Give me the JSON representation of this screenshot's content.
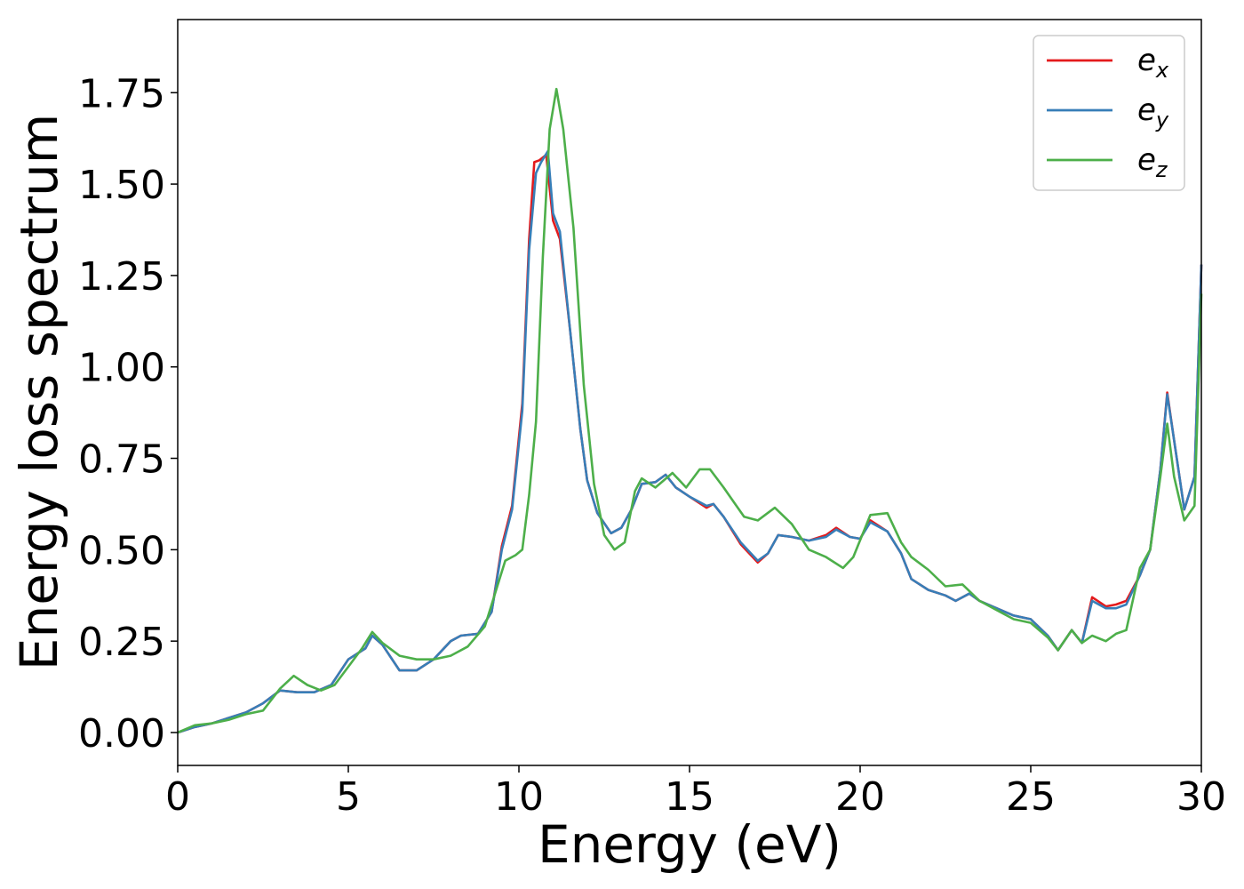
{
  "chart_data": {
    "type": "line",
    "xlabel": "Energy (eV)",
    "ylabel": "Energy loss spectrum",
    "xlim": [
      0,
      30
    ],
    "ylim": [
      -0.09,
      1.95
    ],
    "xticks": [
      "0",
      "5",
      "10",
      "15",
      "20",
      "25",
      "30"
    ],
    "yticks": [
      "0.00",
      "0.25",
      "0.50",
      "0.75",
      "1.00",
      "1.25",
      "1.50",
      "1.75"
    ],
    "grid": false,
    "legend_position": "top-right",
    "series": [
      {
        "name_base": "e",
        "name_sub": "x",
        "color": "#e41a1c",
        "points": [
          [
            0,
            0
          ],
          [
            0.5,
            0.015
          ],
          [
            1,
            0.025
          ],
          [
            1.5,
            0.04
          ],
          [
            2,
            0.055
          ],
          [
            2.5,
            0.08
          ],
          [
            3,
            0.115
          ],
          [
            3.5,
            0.11
          ],
          [
            4,
            0.11
          ],
          [
            4.5,
            0.13
          ],
          [
            5,
            0.2
          ],
          [
            5.5,
            0.23
          ],
          [
            5.7,
            0.265
          ],
          [
            6,
            0.24
          ],
          [
            6.5,
            0.17
          ],
          [
            7,
            0.17
          ],
          [
            7.5,
            0.2
          ],
          [
            8,
            0.25
          ],
          [
            8.3,
            0.265
          ],
          [
            8.8,
            0.27
          ],
          [
            9.2,
            0.33
          ],
          [
            9.5,
            0.51
          ],
          [
            9.8,
            0.62
          ],
          [
            10.1,
            0.9
          ],
          [
            10.3,
            1.35
          ],
          [
            10.45,
            1.56
          ],
          [
            10.6,
            1.565
          ],
          [
            10.8,
            1.58
          ],
          [
            11,
            1.4
          ],
          [
            11.2,
            1.35
          ],
          [
            11.5,
            1.1
          ],
          [
            11.8,
            0.83
          ],
          [
            12,
            0.69
          ],
          [
            12.3,
            0.6
          ],
          [
            12.7,
            0.545
          ],
          [
            13,
            0.56
          ],
          [
            13.3,
            0.61
          ],
          [
            13.6,
            0.68
          ],
          [
            14,
            0.685
          ],
          [
            14.3,
            0.705
          ],
          [
            14.6,
            0.67
          ],
          [
            15,
            0.645
          ],
          [
            15.5,
            0.615
          ],
          [
            15.7,
            0.625
          ],
          [
            16,
            0.59
          ],
          [
            16.5,
            0.515
          ],
          [
            17,
            0.465
          ],
          [
            17.3,
            0.49
          ],
          [
            17.6,
            0.54
          ],
          [
            18,
            0.535
          ],
          [
            18.5,
            0.525
          ],
          [
            19,
            0.54
          ],
          [
            19.3,
            0.56
          ],
          [
            19.7,
            0.535
          ],
          [
            20,
            0.53
          ],
          [
            20.3,
            0.58
          ],
          [
            20.8,
            0.55
          ],
          [
            21.2,
            0.49
          ],
          [
            21.5,
            0.42
          ],
          [
            22,
            0.39
          ],
          [
            22.5,
            0.375
          ],
          [
            22.8,
            0.36
          ],
          [
            23.2,
            0.38
          ],
          [
            23.5,
            0.36
          ],
          [
            24,
            0.34
          ],
          [
            24.5,
            0.32
          ],
          [
            25,
            0.31
          ],
          [
            25.5,
            0.265
          ],
          [
            25.8,
            0.225
          ],
          [
            26.2,
            0.28
          ],
          [
            26.5,
            0.245
          ],
          [
            26.8,
            0.37
          ],
          [
            27.2,
            0.345
          ],
          [
            27.5,
            0.35
          ],
          [
            27.8,
            0.36
          ],
          [
            28.2,
            0.43
          ],
          [
            28.5,
            0.5
          ],
          [
            28.8,
            0.72
          ],
          [
            29,
            0.93
          ],
          [
            29.2,
            0.8
          ],
          [
            29.5,
            0.61
          ],
          [
            29.8,
            0.7
          ],
          [
            30,
            1.28
          ]
        ]
      },
      {
        "name_base": "e",
        "name_sub": "y",
        "color": "#377eb8",
        "points": [
          [
            0,
            0
          ],
          [
            0.5,
            0.015
          ],
          [
            1,
            0.025
          ],
          [
            1.5,
            0.04
          ],
          [
            2,
            0.055
          ],
          [
            2.5,
            0.08
          ],
          [
            3,
            0.115
          ],
          [
            3.5,
            0.11
          ],
          [
            4,
            0.11
          ],
          [
            4.5,
            0.13
          ],
          [
            5,
            0.2
          ],
          [
            5.5,
            0.23
          ],
          [
            5.7,
            0.265
          ],
          [
            6,
            0.24
          ],
          [
            6.5,
            0.17
          ],
          [
            7,
            0.17
          ],
          [
            7.5,
            0.2
          ],
          [
            8,
            0.25
          ],
          [
            8.3,
            0.265
          ],
          [
            8.8,
            0.27
          ],
          [
            9.2,
            0.33
          ],
          [
            9.5,
            0.5
          ],
          [
            9.8,
            0.61
          ],
          [
            10.1,
            0.88
          ],
          [
            10.3,
            1.32
          ],
          [
            10.5,
            1.53
          ],
          [
            10.65,
            1.56
          ],
          [
            10.85,
            1.59
          ],
          [
            11,
            1.42
          ],
          [
            11.2,
            1.37
          ],
          [
            11.5,
            1.1
          ],
          [
            11.8,
            0.83
          ],
          [
            12,
            0.69
          ],
          [
            12.3,
            0.6
          ],
          [
            12.7,
            0.545
          ],
          [
            13,
            0.56
          ],
          [
            13.3,
            0.61
          ],
          [
            13.6,
            0.68
          ],
          [
            14,
            0.685
          ],
          [
            14.3,
            0.705
          ],
          [
            14.6,
            0.67
          ],
          [
            15,
            0.645
          ],
          [
            15.5,
            0.62
          ],
          [
            15.7,
            0.625
          ],
          [
            16,
            0.59
          ],
          [
            16.5,
            0.52
          ],
          [
            17,
            0.47
          ],
          [
            17.3,
            0.49
          ],
          [
            17.6,
            0.54
          ],
          [
            18,
            0.535
          ],
          [
            18.5,
            0.525
          ],
          [
            19,
            0.535
          ],
          [
            19.3,
            0.555
          ],
          [
            19.7,
            0.535
          ],
          [
            20,
            0.53
          ],
          [
            20.3,
            0.575
          ],
          [
            20.8,
            0.55
          ],
          [
            21.2,
            0.49
          ],
          [
            21.5,
            0.42
          ],
          [
            22,
            0.39
          ],
          [
            22.5,
            0.375
          ],
          [
            22.8,
            0.36
          ],
          [
            23.2,
            0.38
          ],
          [
            23.5,
            0.36
          ],
          [
            24,
            0.34
          ],
          [
            24.5,
            0.32
          ],
          [
            25,
            0.31
          ],
          [
            25.5,
            0.265
          ],
          [
            25.8,
            0.225
          ],
          [
            26.2,
            0.28
          ],
          [
            26.5,
            0.245
          ],
          [
            26.8,
            0.36
          ],
          [
            27.2,
            0.34
          ],
          [
            27.5,
            0.34
          ],
          [
            27.8,
            0.35
          ],
          [
            28.2,
            0.43
          ],
          [
            28.5,
            0.5
          ],
          [
            28.8,
            0.72
          ],
          [
            29,
            0.925
          ],
          [
            29.2,
            0.8
          ],
          [
            29.5,
            0.61
          ],
          [
            29.8,
            0.7
          ],
          [
            30,
            1.28
          ]
        ]
      },
      {
        "name_base": "e",
        "name_sub": "z",
        "color": "#4daf4a",
        "points": [
          [
            0,
            0
          ],
          [
            0.5,
            0.02
          ],
          [
            1,
            0.025
          ],
          [
            1.5,
            0.035
          ],
          [
            2,
            0.05
          ],
          [
            2.5,
            0.06
          ],
          [
            3,
            0.12
          ],
          [
            3.4,
            0.155
          ],
          [
            3.8,
            0.13
          ],
          [
            4.2,
            0.115
          ],
          [
            4.6,
            0.13
          ],
          [
            5,
            0.18
          ],
          [
            5.4,
            0.23
          ],
          [
            5.7,
            0.275
          ],
          [
            6,
            0.245
          ],
          [
            6.5,
            0.21
          ],
          [
            7,
            0.2
          ],
          [
            7.5,
            0.2
          ],
          [
            8,
            0.21
          ],
          [
            8.5,
            0.235
          ],
          [
            9,
            0.29
          ],
          [
            9.3,
            0.38
          ],
          [
            9.6,
            0.47
          ],
          [
            9.9,
            0.485
          ],
          [
            10.1,
            0.5
          ],
          [
            10.3,
            0.65
          ],
          [
            10.5,
            0.85
          ],
          [
            10.7,
            1.3
          ],
          [
            10.9,
            1.65
          ],
          [
            11.1,
            1.76
          ],
          [
            11.3,
            1.65
          ],
          [
            11.6,
            1.38
          ],
          [
            11.9,
            0.95
          ],
          [
            12.2,
            0.68
          ],
          [
            12.5,
            0.54
          ],
          [
            12.8,
            0.5
          ],
          [
            13.1,
            0.52
          ],
          [
            13.4,
            0.66
          ],
          [
            13.6,
            0.695
          ],
          [
            14,
            0.67
          ],
          [
            14.5,
            0.71
          ],
          [
            14.9,
            0.67
          ],
          [
            15.3,
            0.72
          ],
          [
            15.6,
            0.72
          ],
          [
            16,
            0.67
          ],
          [
            16.3,
            0.63
          ],
          [
            16.6,
            0.59
          ],
          [
            17,
            0.58
          ],
          [
            17.5,
            0.615
          ],
          [
            18,
            0.57
          ],
          [
            18.5,
            0.5
          ],
          [
            19,
            0.48
          ],
          [
            19.5,
            0.45
          ],
          [
            19.8,
            0.48
          ],
          [
            20.3,
            0.595
          ],
          [
            20.8,
            0.6
          ],
          [
            21.2,
            0.52
          ],
          [
            21.5,
            0.48
          ],
          [
            22,
            0.445
          ],
          [
            22.5,
            0.4
          ],
          [
            23,
            0.405
          ],
          [
            23.5,
            0.36
          ],
          [
            24,
            0.335
          ],
          [
            24.5,
            0.31
          ],
          [
            25,
            0.3
          ],
          [
            25.5,
            0.26
          ],
          [
            25.8,
            0.225
          ],
          [
            26.2,
            0.28
          ],
          [
            26.5,
            0.245
          ],
          [
            26.8,
            0.265
          ],
          [
            27.2,
            0.25
          ],
          [
            27.5,
            0.27
          ],
          [
            27.8,
            0.28
          ],
          [
            28.2,
            0.45
          ],
          [
            28.5,
            0.5
          ],
          [
            28.8,
            0.7
          ],
          [
            29,
            0.845
          ],
          [
            29.2,
            0.7
          ],
          [
            29.5,
            0.58
          ],
          [
            29.8,
            0.62
          ],
          [
            30,
            1.2
          ]
        ]
      }
    ]
  }
}
